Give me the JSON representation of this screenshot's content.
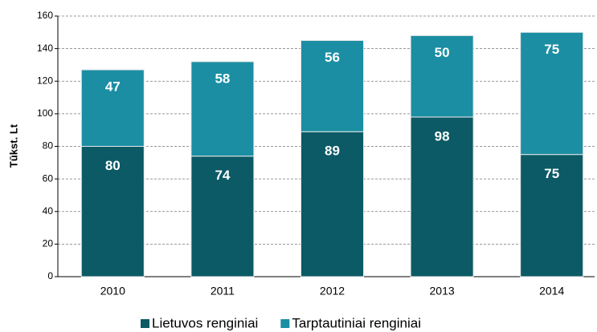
{
  "chart_data": {
    "type": "stacked_bar",
    "y_label": "Tūkst. Lt",
    "categories": [
      "2010",
      "2011",
      "2012",
      "2013",
      "2014"
    ],
    "series": [
      {
        "name": "Lietuvos renginiai",
        "color": "#0b5a66",
        "values": [
          80,
          74,
          89,
          98,
          75
        ]
      },
      {
        "name": "Tarptautiniai renginiai",
        "color": "#1b8ea3",
        "values": [
          47,
          58,
          56,
          50,
          75
        ]
      }
    ],
    "ylim": [
      0,
      160
    ],
    "yticks": [
      0,
      20,
      40,
      60,
      80,
      100,
      120,
      140,
      160
    ],
    "grid": true,
    "legend": "bottom"
  }
}
